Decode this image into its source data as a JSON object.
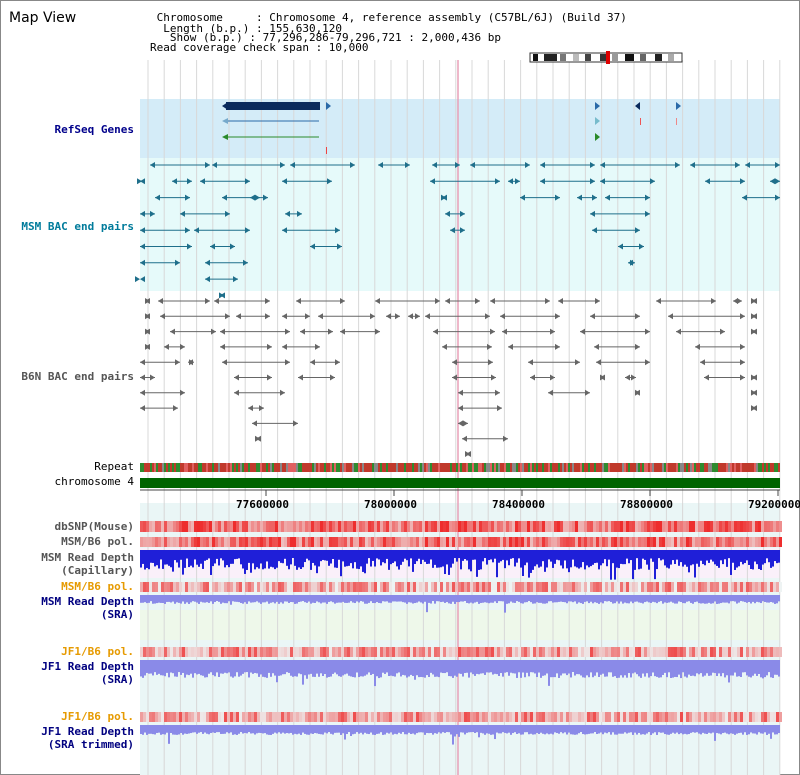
{
  "header": {
    "title": "Map View",
    "info_lines": [
      " Chromosome     : Chromosome 4, reference assembly (C57BL/6J) (Build 37)",
      "  Length (b.p.) : 155,630,120",
      "   Show (b.p.) : 77,296,286-79,296,721 : 2,000,436 bp",
      "Read coverage check span : 10,000"
    ]
  },
  "tracks": {
    "refseq_label": "RefSeq Genes",
    "msm_bac_label": "MSM BAC end pairs",
    "b6n_bac_label": "B6N BAC end pairs",
    "repeat_label": "Repeat",
    "chromosome_label": "chromosome 4",
    "dbsnp_label": "dbSNP(Mouse)",
    "msm_b6_pol_label": "MSM/B6 pol.",
    "msm_read_depth_cap_label": [
      "MSM Read Depth",
      "(Capillary)"
    ],
    "msm_b6_pol2_label": "MSM/B6 pol.",
    "msm_read_depth_sra_label": [
      "MSM Read Depth",
      "(SRA)"
    ],
    "jf1_b6_pol_label": "JF1/B6 pol.",
    "jf1_read_depth_label": [
      "JF1 Read Depth",
      "(SRA)"
    ],
    "jf1_b6_pol2_label": "JF1/B6 pol.",
    "jf1_read_depth_trim_label": [
      "JF1 Read Depth",
      "(SRA trimmed)"
    ]
  },
  "axis": {
    "ticks": [
      "77600000",
      "78000000",
      "78400000",
      "78800000",
      "79200000"
    ]
  },
  "colors": {
    "refseq_bg": "#d4ecf8",
    "msm_bg": "#e6fafa",
    "light_bg": "#eaf6f6",
    "chromosome_bar": "#006400",
    "refseq_text": "#00008b",
    "msm_text": "#007b9b",
    "b6n_text": "#555555",
    "orange": "#e69a00",
    "navy": "#000080",
    "depth_blue": "#1f1fd8",
    "depth_light": "#8a8ae8",
    "pol_red": "#ee2222"
  }
}
